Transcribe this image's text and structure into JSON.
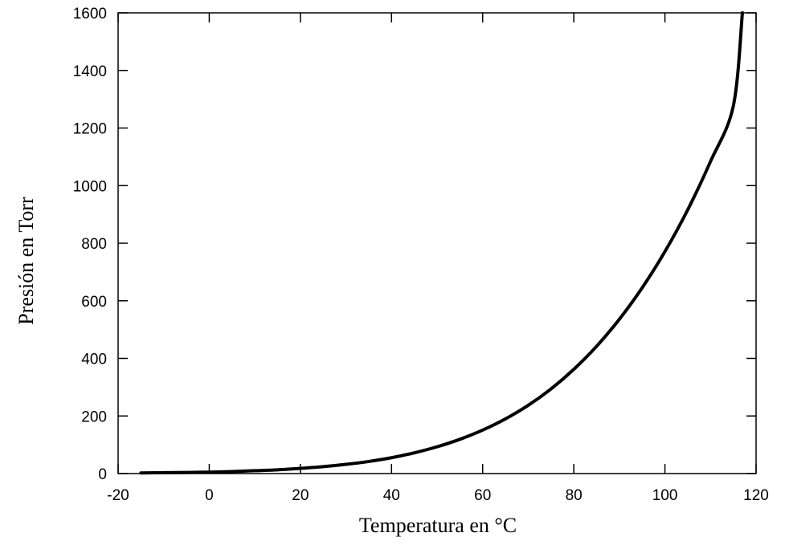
{
  "chart_data": {
    "type": "line",
    "title": "",
    "xlabel": "Temperatura en °C",
    "ylabel": "Presión en Torr",
    "xlim": [
      -20,
      120
    ],
    "ylim": [
      0,
      1600
    ],
    "xticks": [
      "-20",
      "0",
      "20",
      "40",
      "60",
      "80",
      "100",
      "120"
    ],
    "yticks": [
      "0",
      "200",
      "400",
      "600",
      "800",
      "1000",
      "1200",
      "1400",
      "1600"
    ],
    "grid": false,
    "line_color": "#000000",
    "series": [
      {
        "x": [
          -15,
          -10,
          -5,
          0,
          5,
          10,
          15,
          20,
          25,
          30,
          35,
          40,
          45,
          50,
          55,
          60,
          65,
          70,
          75,
          80,
          85,
          90,
          95,
          100,
          105,
          110,
          115,
          117
        ],
        "y": [
          2,
          3,
          4,
          5,
          7,
          10,
          13,
          18,
          24,
          32,
          42,
          55,
          72,
          93,
          119,
          151,
          190,
          237,
          294,
          362,
          442,
          536,
          645,
          771,
          916,
          1084,
          1276,
          1600
        ]
      }
    ]
  }
}
